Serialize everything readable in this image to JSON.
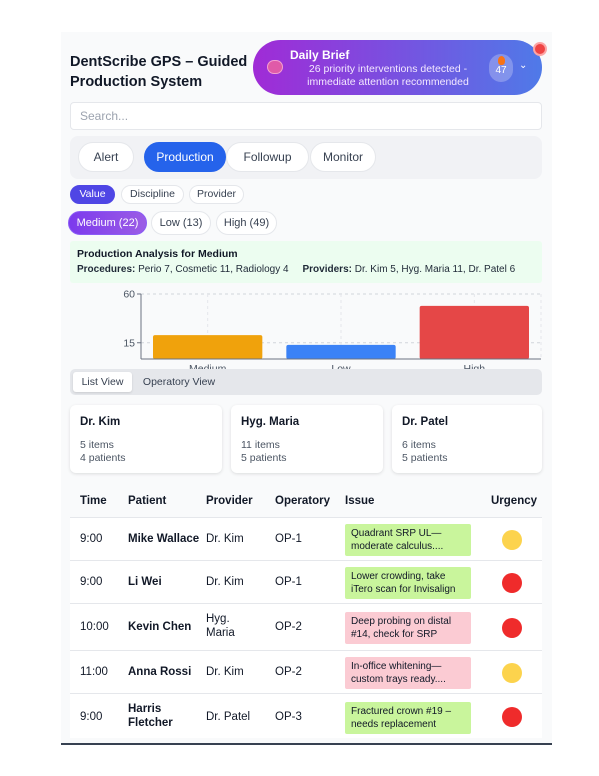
{
  "header": {
    "title": "DentScribe GPS – Guided Production System"
  },
  "brief": {
    "title": "Daily Brief",
    "message": "26 priority interventions detected - immediate attention recommended",
    "count": "47",
    "icon": "brain-icon",
    "colors": {
      "from": "#a02bd6",
      "to": "#4f7ae8"
    }
  },
  "search": {
    "placeholder": "Search..."
  },
  "tabs": [
    {
      "label": "Alert"
    },
    {
      "label": "Production",
      "active": true
    },
    {
      "label": "Followup"
    },
    {
      "label": "Monitor"
    }
  ],
  "group_by": [
    {
      "label": "Value",
      "active": true
    },
    {
      "label": "Discipline"
    },
    {
      "label": "Provider"
    }
  ],
  "value_filters": [
    {
      "label": "Medium (22)",
      "active": true
    },
    {
      "label": "Low (13)"
    },
    {
      "label": "High (49)"
    }
  ],
  "analysis": {
    "title": "Production Analysis for Medium",
    "procedures_label": "Procedures:",
    "procedures": "Perio 7, Cosmetic 11, Radiology 4",
    "providers_label": "Providers:",
    "providers": "Dr. Kim 5, Hyg. Maria 11, Dr. Patel 6"
  },
  "chart_data": {
    "type": "bar",
    "categories": [
      "Medium",
      "Low",
      "High"
    ],
    "values": [
      22,
      13,
      49
    ],
    "colors": [
      "#f0a20c",
      "#3b82f6",
      "#e54747"
    ],
    "ytick_labels": [
      "60",
      "15"
    ],
    "ylim": [
      0,
      60
    ],
    "grid": true
  },
  "view_tabs": [
    {
      "label": "List View",
      "active": true
    },
    {
      "label": "Operatory View"
    }
  ],
  "provider_cards": [
    {
      "name": "Dr. Kim",
      "items": "5 items",
      "patients": "4 patients"
    },
    {
      "name": "Hyg. Maria",
      "items": "11 items",
      "patients": "5 patients"
    },
    {
      "name": "Dr. Patel",
      "items": "6 items",
      "patients": "5 patients"
    }
  ],
  "table": {
    "headers": {
      "time": "Time",
      "patient": "Patient",
      "provider": "Provider",
      "operatory": "Operatory",
      "issue": "Issue",
      "urgency": "Urgency"
    },
    "rows": [
      {
        "time": "9:00",
        "patient": "Mike Wallace",
        "provider": "Dr. Kim",
        "operatory": "OP-1",
        "issue": "Quadrant SRP UL—moderate calculus....",
        "issue_color": "#c9f59c",
        "urgency_color": "#fcd34d"
      },
      {
        "time": "9:00",
        "patient": "Li Wei",
        "provider": "Dr. Kim",
        "operatory": "OP-1",
        "issue": "Lower crowding, take iTero scan for Invisalign",
        "issue_color": "#c9f59c",
        "urgency_color": "#ef2b2b"
      },
      {
        "time": "10:00",
        "patient": "Kevin Chen",
        "provider": "Hyg. Maria",
        "operatory": "OP-2",
        "issue": "Deep probing on distal #14, check for SRP",
        "issue_color": "#fbcbd3",
        "urgency_color": "#ef2b2b"
      },
      {
        "time": "11:00",
        "patient": "Anna Rossi",
        "provider": "Dr. Kim",
        "operatory": "OP-2",
        "issue": "In-office whitening—custom trays ready....",
        "issue_color": "#fbcbd3",
        "urgency_color": "#fcd34d"
      },
      {
        "time": "9:00",
        "patient": "Harris Fletcher",
        "provider": "Dr. Patel",
        "operatory": "OP-3",
        "issue": "Fractured crown #19 – needs replacement",
        "issue_color": "#c9f59c",
        "urgency_color": "#ef2b2b"
      }
    ]
  }
}
